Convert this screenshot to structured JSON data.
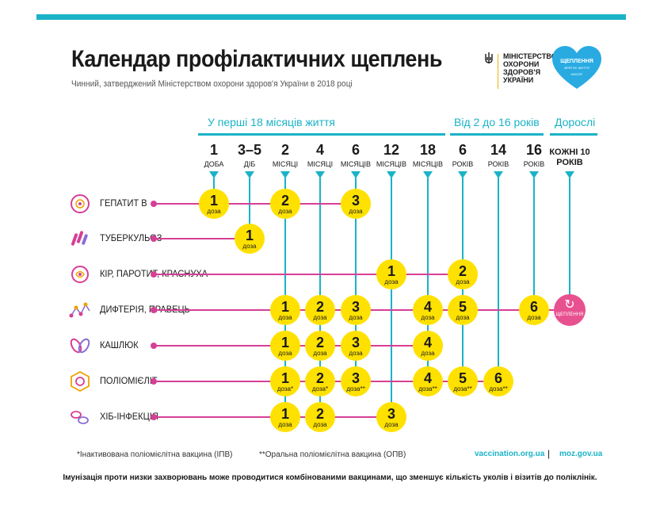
{
  "header": {
    "title": "Календар профілактичних щеплень",
    "subtitle": "Чинний, затверджений Міністерством охорони здоров'я України в 2018 році"
  },
  "logos": {
    "moz_lines": [
      "МІНІСТЕРСТВО",
      "ОХОРОНИ",
      "ЗДОРОВ'Я",
      "УКРАЇНИ"
    ],
    "heart_title": "ЩЕПЛЕННЯ",
    "heart_sub": "ВРЯТУЄ ЖИТТЯ",
    "heart_footer": "UNICEF"
  },
  "sections": {
    "first18": "У перші 18 місяців життя",
    "age2to16": "Від 2 до 16 років",
    "adults": "Дорослі"
  },
  "columns": [
    {
      "num": "1",
      "unit": "ДОБА"
    },
    {
      "num": "3–5",
      "unit": "ДІБ"
    },
    {
      "num": "2",
      "unit": "МІСЯЦІ"
    },
    {
      "num": "4",
      "unit": "МІСЯЦІ"
    },
    {
      "num": "6",
      "unit": "МІСЯЦІВ"
    },
    {
      "num": "12",
      "unit": "МІСЯЦІВ"
    },
    {
      "num": "18",
      "unit": "МІСЯЦІВ"
    },
    {
      "num": "6",
      "unit": "РОКІВ"
    },
    {
      "num": "14",
      "unit": "РОКІВ"
    },
    {
      "num": "16",
      "unit": "РОКІВ"
    },
    {
      "num": "КОЖНІ 10 РОКІВ",
      "unit": ""
    }
  ],
  "dose_word": "доза",
  "booster_label": "ЩЕПЛЕННЯ",
  "diseases": [
    {
      "name": "ГЕПАТИТ В",
      "icon": "hepatitis-b-icon",
      "doses": [
        {
          "col": 0,
          "n": "1",
          "mark": ""
        },
        {
          "col": 2,
          "n": "2",
          "mark": ""
        },
        {
          "col": 4,
          "n": "3",
          "mark": ""
        }
      ]
    },
    {
      "name": "ТУБЕРКУЛЬОЗ",
      "icon": "tuberculosis-icon",
      "doses": [
        {
          "col": 1,
          "n": "1",
          "mark": ""
        }
      ]
    },
    {
      "name": "КІР, ПАРОТИТ, КРАСНУХА",
      "icon": "measles-icon",
      "doses": [
        {
          "col": 5,
          "n": "1",
          "mark": ""
        },
        {
          "col": 7,
          "n": "2",
          "mark": ""
        }
      ]
    },
    {
      "name": "ДИФТЕРІЯ, ПРАВЕЦЬ",
      "icon": "diphtheria-icon",
      "doses": [
        {
          "col": 2,
          "n": "1",
          "mark": ""
        },
        {
          "col": 3,
          "n": "2",
          "mark": ""
        },
        {
          "col": 4,
          "n": "3",
          "mark": ""
        },
        {
          "col": 6,
          "n": "4",
          "mark": ""
        },
        {
          "col": 7,
          "n": "5",
          "mark": ""
        },
        {
          "col": 9,
          "n": "6",
          "mark": ""
        }
      ],
      "booster": true
    },
    {
      "name": "КАШЛЮК",
      "icon": "pertussis-icon",
      "doses": [
        {
          "col": 2,
          "n": "1",
          "mark": ""
        },
        {
          "col": 3,
          "n": "2",
          "mark": ""
        },
        {
          "col": 4,
          "n": "3",
          "mark": ""
        },
        {
          "col": 6,
          "n": "4",
          "mark": ""
        }
      ]
    },
    {
      "name": "ПОЛІОМІЄЛІТ",
      "icon": "polio-icon",
      "doses": [
        {
          "col": 2,
          "n": "1",
          "mark": "*"
        },
        {
          "col": 3,
          "n": "2",
          "mark": "*"
        },
        {
          "col": 4,
          "n": "3",
          "mark": "**"
        },
        {
          "col": 6,
          "n": "4",
          "mark": "**"
        },
        {
          "col": 7,
          "n": "5",
          "mark": "**"
        },
        {
          "col": 8,
          "n": "6",
          "mark": "**"
        }
      ]
    },
    {
      "name": "ХІБ-ІНФЕКЦІЯ",
      "icon": "hib-icon",
      "doses": [
        {
          "col": 2,
          "n": "1",
          "mark": ""
        },
        {
          "col": 3,
          "n": "2",
          "mark": ""
        },
        {
          "col": 5,
          "n": "3",
          "mark": ""
        }
      ]
    }
  ],
  "footer": {
    "note_ipv": "*Інактивована поліомієлітна вакцина (ІПВ)",
    "note_opv": "**Оральна поліомієлітна вакцина (ОПВ)",
    "site1": "vaccination.org.ua",
    "site2": "moz.gov.ua",
    "bottom": "Імунізація проти низки захворювань може проводитися комбінованими вакцинами, що зменшує кількість уколів і візитів до поліклінік."
  },
  "colors": {
    "accent": "#1ab3c7",
    "dose": "#ffe100",
    "row": "#d63f95",
    "booster": "#e8518f",
    "heart": "#29abe2"
  }
}
